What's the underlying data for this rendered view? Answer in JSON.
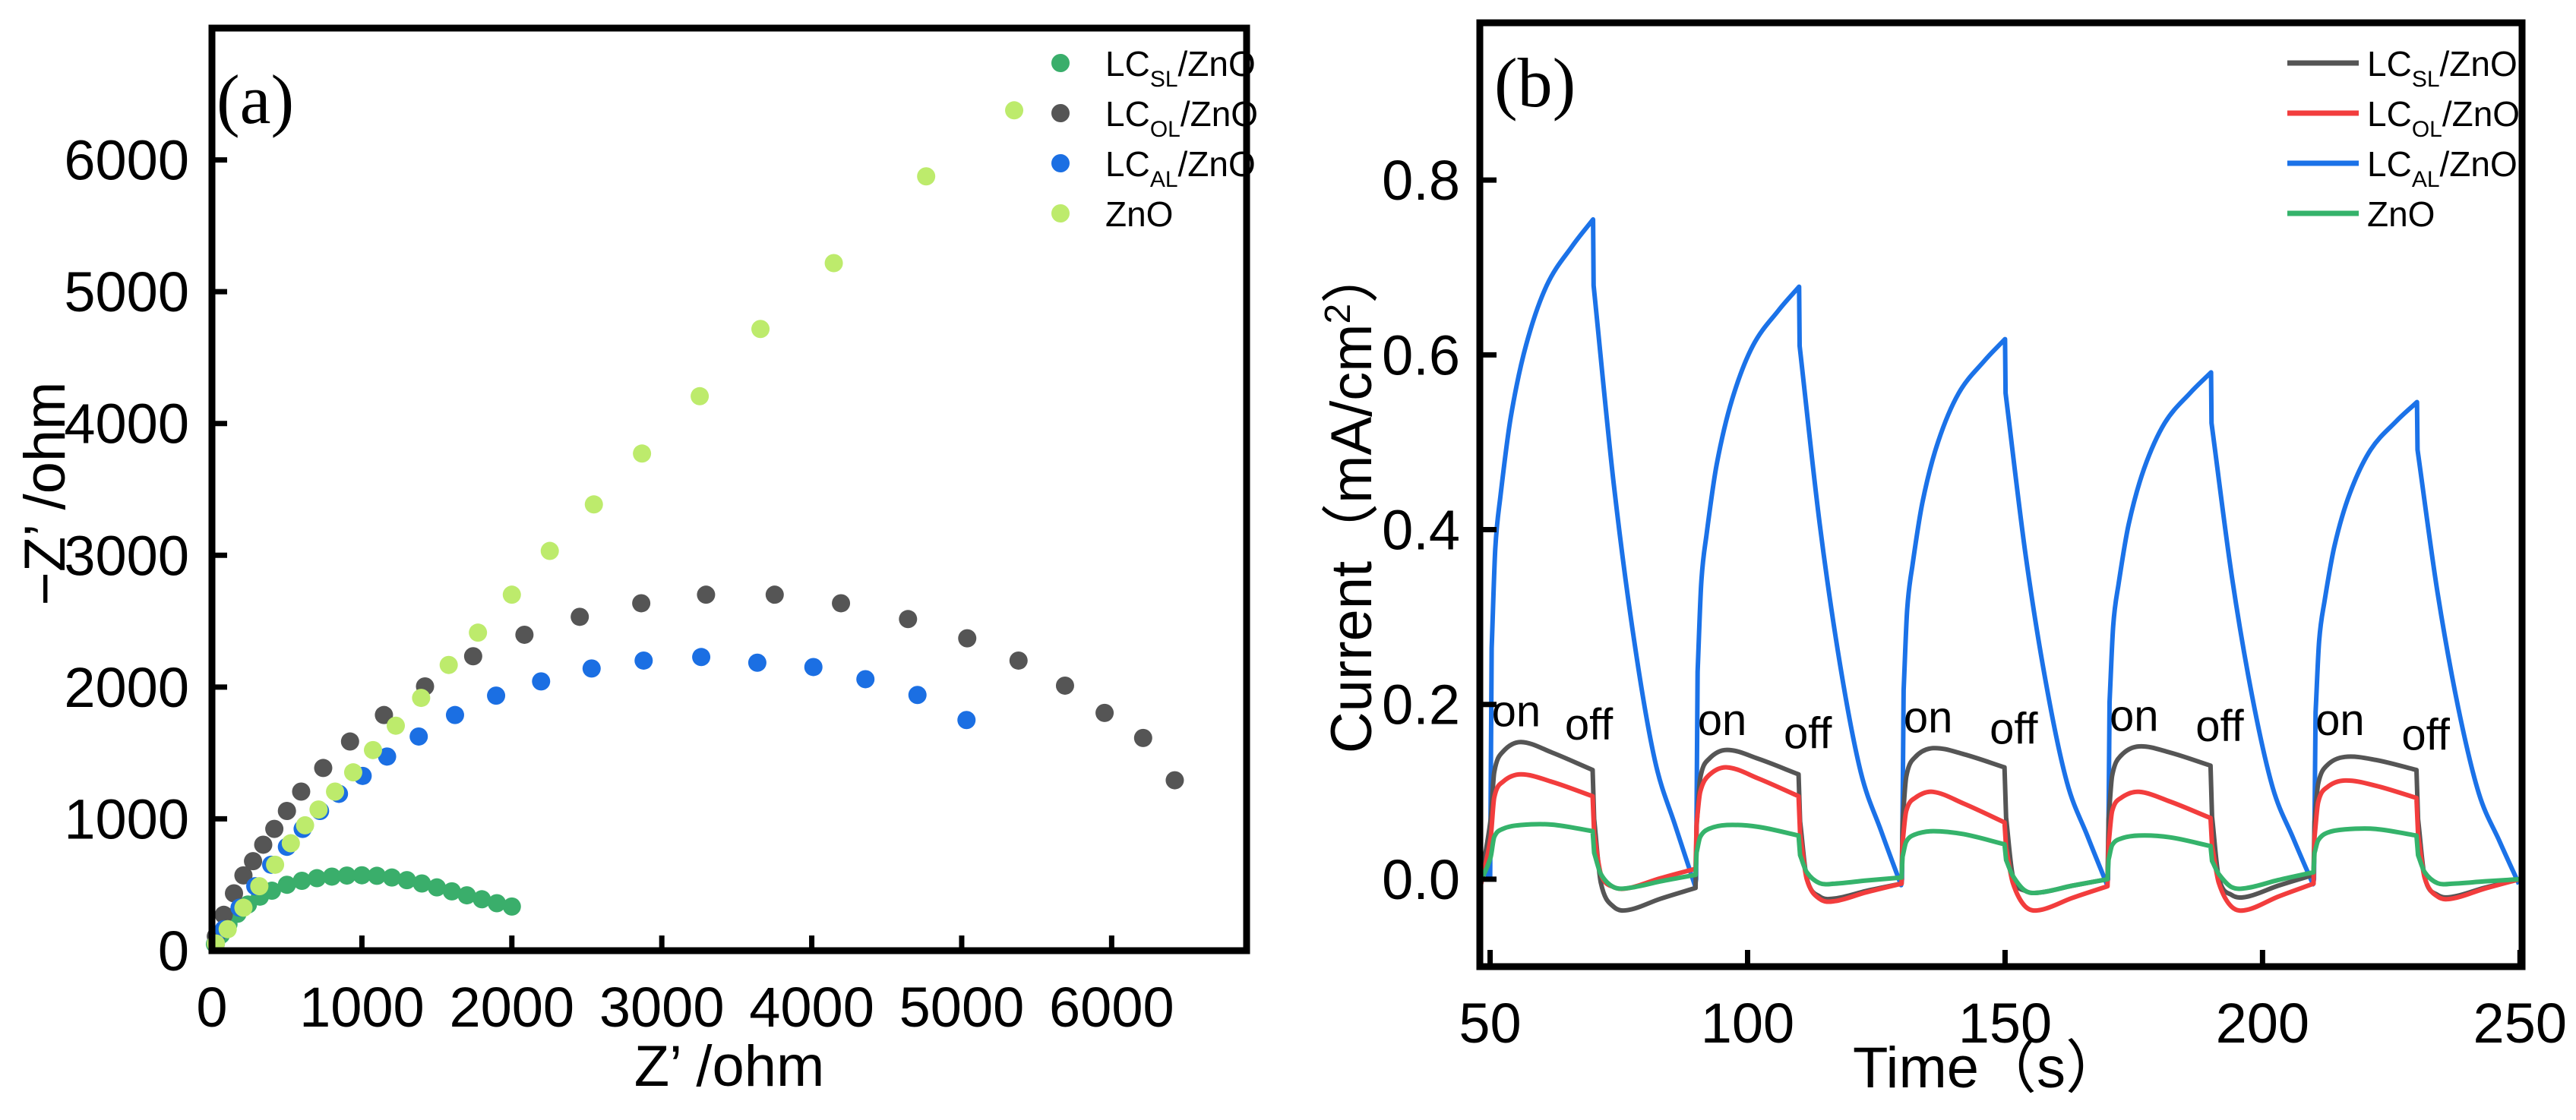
{
  "chart_data": [
    {
      "type": "scatter",
      "panel_label": "(a)",
      "xlabel": "Z’ /ohm",
      "ylabel": "−Z’ /ohm",
      "xlim": [
        0,
        6900
      ],
      "ylim": [
        0,
        7000
      ],
      "xticks": [
        0,
        1000,
        2000,
        3000,
        4000,
        5000,
        6000
      ],
      "yticks": [
        0,
        1000,
        2000,
        3000,
        4000,
        5000,
        6000
      ],
      "legend_position": "top-right",
      "series": [
        {
          "name": "LCSL/ZnO",
          "base": "LC",
          "subscript": "SL",
          "suffix": "/ZnO",
          "color": "#3aae6b",
          "points": [
            [
              20,
              50
            ],
            [
              60,
              120
            ],
            [
              110,
              200
            ],
            [
              170,
              280
            ],
            [
              240,
              350
            ],
            [
              320,
              410
            ],
            [
              400,
              455
            ],
            [
              500,
              500
            ],
            [
              600,
              530
            ],
            [
              700,
              550
            ],
            [
              800,
              562
            ],
            [
              900,
              570
            ],
            [
              1000,
              572
            ],
            [
              1100,
              568
            ],
            [
              1200,
              555
            ],
            [
              1300,
              535
            ],
            [
              1400,
              510
            ],
            [
              1500,
              480
            ],
            [
              1600,
              450
            ],
            [
              1700,
              420
            ],
            [
              1800,
              390
            ],
            [
              1900,
              360
            ],
            [
              2000,
              335
            ]
          ]
        },
        {
          "name": "LCOL/ZnO",
          "base": "LC",
          "subscript": "OL",
          "suffix": "/ZnO",
          "color": "#555555",
          "points": [
            [
              26,
              109
            ],
            [
              79,
              272
            ],
            [
              147,
              435
            ],
            [
              210,
              571
            ],
            [
              274,
              679
            ],
            [
              342,
              804
            ],
            [
              416,
              924
            ],
            [
              500,
              1060
            ],
            [
              595,
              1207
            ],
            [
              742,
              1386
            ],
            [
              921,
              1587
            ],
            [
              1147,
              1788
            ],
            [
              1421,
              2005
            ],
            [
              1742,
              2234
            ],
            [
              2084,
              2397
            ],
            [
              2453,
              2533
            ],
            [
              2863,
              2636
            ],
            [
              3295,
              2701
            ],
            [
              3753,
              2701
            ],
            [
              4195,
              2636
            ],
            [
              4642,
              2516
            ],
            [
              5037,
              2370
            ],
            [
              5379,
              2201
            ],
            [
              5689,
              2011
            ],
            [
              5953,
              1804
            ],
            [
              6210,
              1614
            ],
            [
              6421,
              1293
            ]
          ]
        },
        {
          "name": "LCAL/ZnO",
          "base": "LC",
          "subscript": "AL",
          "suffix": "/ZnO",
          "color": "#1b6fe3",
          "points": [
            [
              26,
              54
            ],
            [
              79,
              163
            ],
            [
              184,
              326
            ],
            [
              289,
              489
            ],
            [
              395,
              652
            ],
            [
              500,
              788
            ],
            [
              605,
              924
            ],
            [
              721,
              1060
            ],
            [
              847,
              1190
            ],
            [
              1005,
              1326
            ],
            [
              1168,
              1473
            ],
            [
              1379,
              1625
            ],
            [
              1621,
              1788
            ],
            [
              1895,
              1935
            ],
            [
              2195,
              2043
            ],
            [
              2532,
              2141
            ],
            [
              2879,
              2201
            ],
            [
              3263,
              2228
            ],
            [
              3637,
              2185
            ],
            [
              4011,
              2152
            ],
            [
              4358,
              2060
            ],
            [
              4705,
              1940
            ],
            [
              5032,
              1750
            ]
          ]
        },
        {
          "name": "ZnO",
          "base": "ZnO",
          "subscript": "",
          "suffix": "",
          "color": "#bdeb6c",
          "points": [
            [
              26,
              54
            ],
            [
              105,
              163
            ],
            [
              210,
              326
            ],
            [
              316,
              489
            ],
            [
              421,
              652
            ],
            [
              526,
              815
            ],
            [
              621,
              951
            ],
            [
              711,
              1071
            ],
            [
              821,
              1207
            ],
            [
              942,
              1353
            ],
            [
              1074,
              1522
            ],
            [
              1226,
              1707
            ],
            [
              1395,
              1918
            ],
            [
              1579,
              2168
            ],
            [
              1774,
              2413
            ],
            [
              2000,
              2701
            ],
            [
              2253,
              3033
            ],
            [
              2547,
              3386
            ],
            [
              2868,
              3772
            ],
            [
              3253,
              4207
            ],
            [
              3658,
              4717
            ],
            [
              4147,
              5217
            ],
            [
              4763,
              5875
            ],
            [
              5350,
              6376
            ]
          ]
        }
      ]
    },
    {
      "type": "line",
      "panel_label": "(b)",
      "xlabel": "Time（s）",
      "ylabel_main": "Current（mA/cm",
      "ylabel_sup": "2",
      "ylabel_end": "）",
      "xlim": [
        48,
        250.4
      ],
      "ylim": [
        -0.1,
        0.98
      ],
      "xticks": [
        50,
        100,
        150,
        200,
        250
      ],
      "yticks": [
        "0.0",
        "0.2",
        "0.4",
        "0.6",
        "0.8"
      ],
      "legend_position": "top-right",
      "light_on_times": [
        50,
        90,
        130,
        170,
        210
      ],
      "light_off_times": [
        70,
        110,
        150,
        190,
        230
      ],
      "annotations": [
        {
          "text": "on",
          "x": 50.3,
          "y": 0.175
        },
        {
          "text": "off",
          "x": 64.5,
          "y": 0.16
        },
        {
          "text": "on",
          "x": 90.3,
          "y": 0.165
        },
        {
          "text": "off",
          "x": 107,
          "y": 0.15
        },
        {
          "text": "on",
          "x": 130.3,
          "y": 0.168
        },
        {
          "text": "off",
          "x": 147,
          "y": 0.155
        },
        {
          "text": "on",
          "x": 170.3,
          "y": 0.17
        },
        {
          "text": "off",
          "x": 187,
          "y": 0.158
        },
        {
          "text": "on",
          "x": 210.3,
          "y": 0.165
        },
        {
          "text": "off",
          "x": 227,
          "y": 0.148
        }
      ],
      "series": [
        {
          "name": "LCSL/ZnO",
          "base": "LC",
          "subscript": "SL",
          "suffix": "/ZnO",
          "color": "#555555",
          "cycle_peak": [
            0.157,
            0.148,
            0.15,
            0.152,
            0.14
          ],
          "cycle_end_on": [
            0.125,
            0.12,
            0.128,
            0.13,
            0.125
          ],
          "cycle_trough_off": [
            -0.035,
            -0.022,
            -0.015,
            -0.02,
            -0.02
          ],
          "cycle_end_off": [
            -0.01,
            -0.005,
            0.0,
            0.005,
            0.0
          ],
          "start": -0.005
        },
        {
          "name": "LCOL/ZnO",
          "base": "LC",
          "subscript": "OL",
          "suffix": "/ZnO",
          "color": "#f23d3d",
          "cycle_peak": [
            0.12,
            0.128,
            0.1,
            0.1,
            0.113
          ],
          "cycle_end_on": [
            0.095,
            0.095,
            0.065,
            0.07,
            0.093
          ],
          "cycle_trough_off": [
            -0.01,
            -0.025,
            -0.035,
            -0.035,
            -0.022
          ],
          "cycle_end_off": [
            0.012,
            -0.005,
            -0.008,
            -0.005,
            0.0
          ],
          "start": -0.012
        },
        {
          "name": "LCAL/ZnO",
          "base": "LC",
          "subscript": "AL",
          "suffix": "/ZnO",
          "color": "#1b72e8",
          "cycle_peak": [
            0.755,
            0.678,
            0.618,
            0.58,
            0.546
          ],
          "rise_profile_offsets_s": [
            0,
            0.3,
            1,
            2,
            4,
            7,
            11,
            16,
            20
          ],
          "rise_profile_fraction": [
            0,
            0.35,
            0.5,
            0.58,
            0.7,
            0.81,
            0.9,
            0.96,
            1
          ],
          "decay_profile_offsets_s": [
            0.1,
            4,
            8,
            12,
            16,
            19.8
          ],
          "decay_profile_fraction": [
            0.9,
            0.6,
            0.36,
            0.18,
            0.08,
            -0.01
          ],
          "start": 0.02
        },
        {
          "name": "ZnO",
          "base": "ZnO",
          "subscript": "",
          "suffix": "",
          "color": "#35b36b",
          "cycle_peak": [
            0.062,
            0.062,
            0.055,
            0.05,
            0.057
          ],
          "cycle_end_on": [
            0.055,
            0.05,
            0.04,
            0.038,
            0.05
          ],
          "cycle_trough_off": [
            -0.01,
            -0.005,
            -0.015,
            -0.01,
            -0.005
          ],
          "cycle_end_off": [
            0.005,
            0.002,
            0.0,
            0.008,
            0.0
          ],
          "start": -0.005
        }
      ]
    }
  ]
}
